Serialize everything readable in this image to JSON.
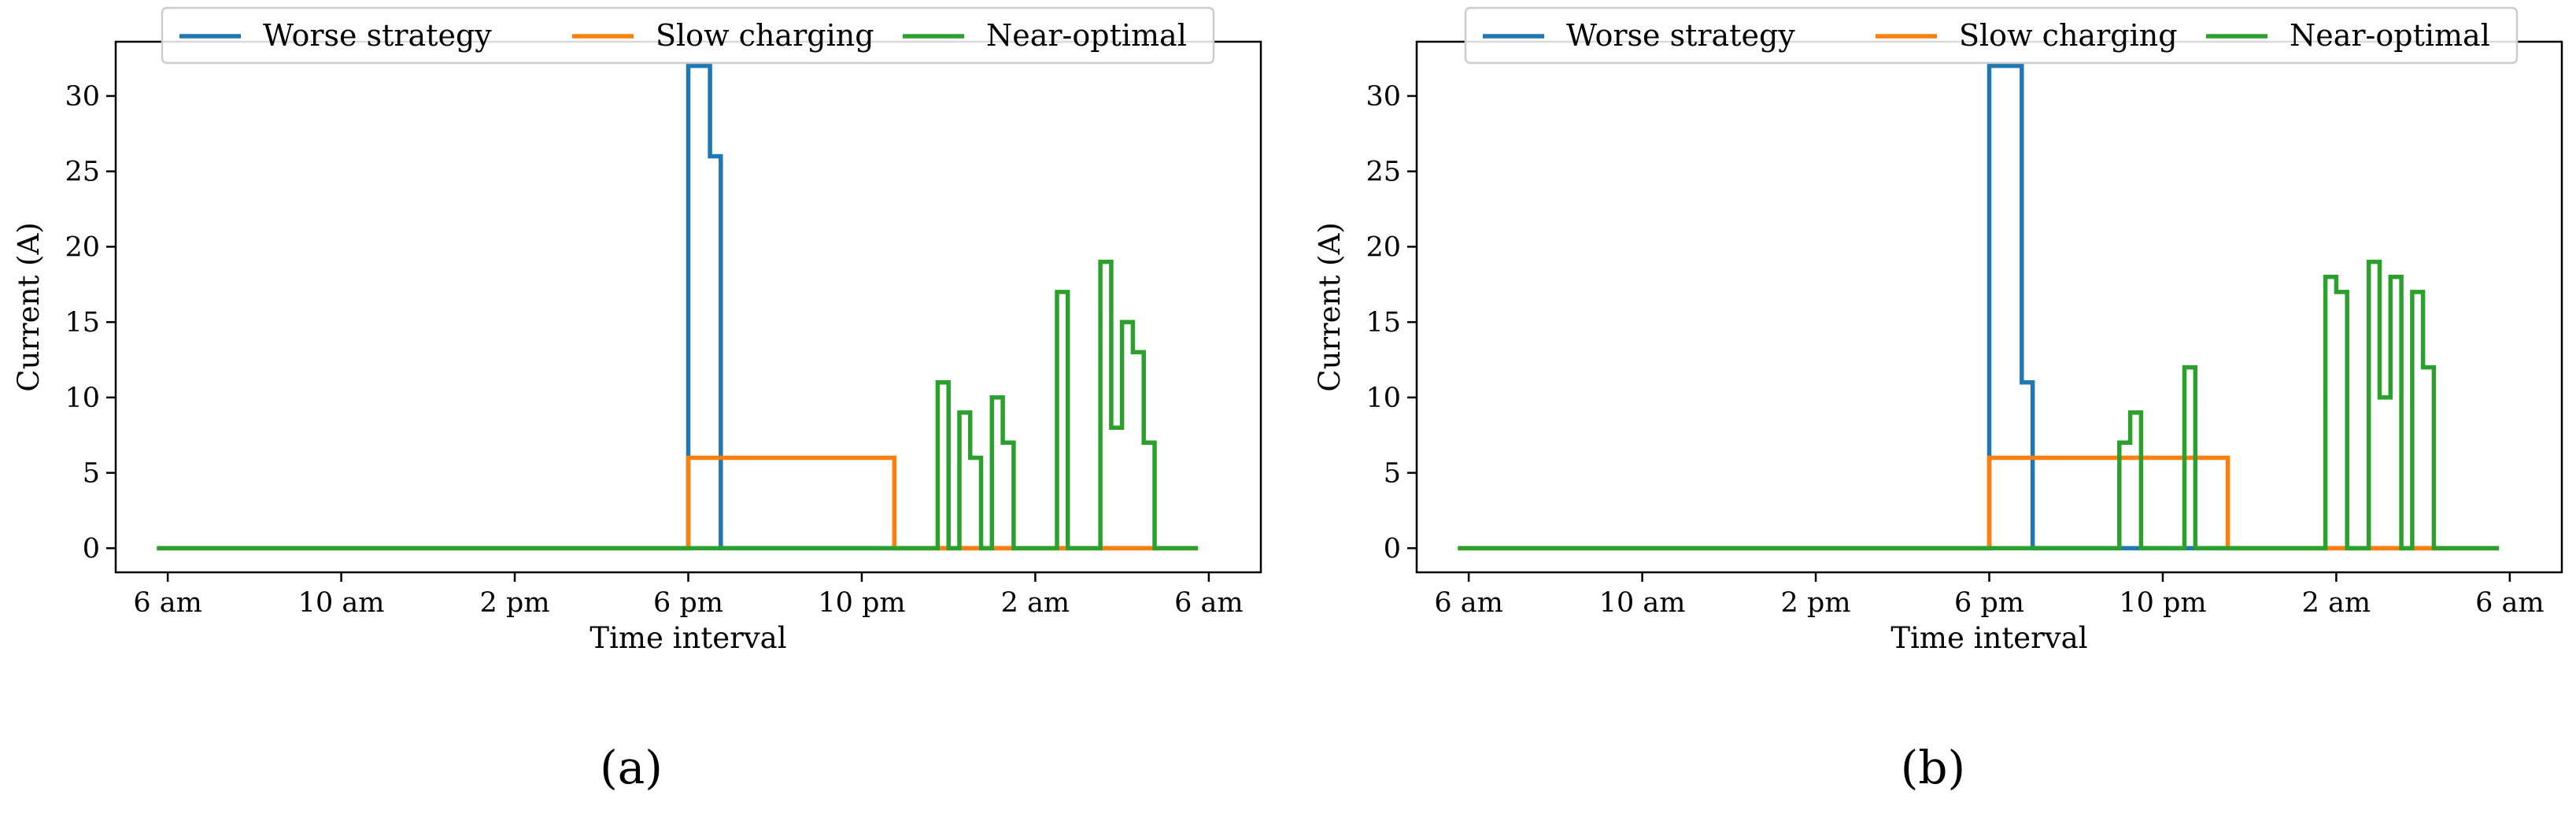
{
  "chart_data": [
    {
      "type": "line",
      "step": true,
      "panel_label": "(a)",
      "xlabel": "Time interval",
      "ylabel": "Current (A)",
      "x_ticks": [
        "6 am",
        "10 am",
        "2 pm",
        "6 pm",
        "10 pm",
        "2 am",
        "6 am"
      ],
      "x_tick_hours": [
        0,
        4,
        8,
        12,
        16,
        20,
        24
      ],
      "xlim": [
        -1.2,
        25.2
      ],
      "y_ticks": [
        0,
        5,
        10,
        15,
        20,
        25,
        30
      ],
      "ylim": [
        -1.6,
        33.6
      ],
      "legend": [
        "Worse strategy",
        "Slow charging",
        "Near-optimal"
      ],
      "series": [
        {
          "name": "Worse strategy",
          "color": "#1f77b4",
          "points": [
            [
              -0.25,
              0
            ],
            [
              12,
              0
            ],
            [
              12,
              32
            ],
            [
              12.5,
              32
            ],
            [
              12.5,
              26
            ],
            [
              12.75,
              26
            ],
            [
              12.75,
              0
            ],
            [
              23.75,
              0
            ]
          ]
        },
        {
          "name": "Slow charging",
          "color": "#ff7f0e",
          "points": [
            [
              -0.25,
              0
            ],
            [
              12,
              0
            ],
            [
              12,
              6
            ],
            [
              16.75,
              6
            ],
            [
              16.75,
              0
            ],
            [
              23.75,
              0
            ]
          ]
        },
        {
          "name": "Near-optimal",
          "color": "#2ca02c",
          "points": [
            [
              -0.25,
              0
            ],
            [
              17.75,
              0
            ],
            [
              17.75,
              11
            ],
            [
              18,
              11
            ],
            [
              18,
              0
            ],
            [
              18.25,
              0
            ],
            [
              18.25,
              9
            ],
            [
              18.5,
              9
            ],
            [
              18.5,
              6
            ],
            [
              18.75,
              6
            ],
            [
              18.75,
              0
            ],
            [
              19,
              0
            ],
            [
              19,
              10
            ],
            [
              19.25,
              10
            ],
            [
              19.25,
              7
            ],
            [
              19.5,
              7
            ],
            [
              19.5,
              0
            ],
            [
              20.5,
              0
            ],
            [
              20.5,
              17
            ],
            [
              20.75,
              17
            ],
            [
              20.75,
              0
            ],
            [
              21.5,
              0
            ],
            [
              21.5,
              19
            ],
            [
              21.75,
              19
            ],
            [
              21.75,
              8
            ],
            [
              22,
              8
            ],
            [
              22,
              15
            ],
            [
              22.25,
              15
            ],
            [
              22.25,
              13
            ],
            [
              22.5,
              13
            ],
            [
              22.5,
              7
            ],
            [
              22.75,
              7
            ],
            [
              22.75,
              0
            ],
            [
              23.75,
              0
            ]
          ]
        }
      ]
    },
    {
      "type": "line",
      "step": true,
      "panel_label": "(b)",
      "xlabel": "Time interval",
      "ylabel": "Current (A)",
      "x_ticks": [
        "6 am",
        "10 am",
        "2 pm",
        "6 pm",
        "10 pm",
        "2 am",
        "6 am"
      ],
      "x_tick_hours": [
        0,
        4,
        8,
        12,
        16,
        20,
        24
      ],
      "xlim": [
        -1.2,
        25.2
      ],
      "y_ticks": [
        0,
        5,
        10,
        15,
        20,
        25,
        30
      ],
      "ylim": [
        -1.6,
        33.6
      ],
      "legend": [
        "Worse strategy",
        "Slow charging",
        "Near-optimal"
      ],
      "series": [
        {
          "name": "Worse strategy",
          "color": "#1f77b4",
          "points": [
            [
              -0.25,
              0
            ],
            [
              12,
              0
            ],
            [
              12,
              32
            ],
            [
              12.75,
              32
            ],
            [
              12.75,
              11
            ],
            [
              13,
              11
            ],
            [
              13,
              0
            ],
            [
              23.75,
              0
            ]
          ]
        },
        {
          "name": "Slow charging",
          "color": "#ff7f0e",
          "points": [
            [
              -0.25,
              0
            ],
            [
              12,
              0
            ],
            [
              12,
              6
            ],
            [
              17.5,
              6
            ],
            [
              17.5,
              0
            ],
            [
              23.75,
              0
            ]
          ]
        },
        {
          "name": "Near-optimal",
          "color": "#2ca02c",
          "points": [
            [
              -0.25,
              0
            ],
            [
              15,
              0
            ],
            [
              15,
              7
            ],
            [
              15.25,
              7
            ],
            [
              15.25,
              9
            ],
            [
              15.5,
              9
            ],
            [
              15.5,
              0
            ],
            [
              16.5,
              0
            ],
            [
              16.5,
              12
            ],
            [
              16.75,
              12
            ],
            [
              16.75,
              0
            ],
            [
              19.75,
              0
            ],
            [
              19.75,
              18
            ],
            [
              20,
              18
            ],
            [
              20,
              17
            ],
            [
              20.25,
              17
            ],
            [
              20.25,
              0
            ],
            [
              20.75,
              0
            ],
            [
              20.75,
              19
            ],
            [
              21,
              19
            ],
            [
              21,
              10
            ],
            [
              21.25,
              10
            ],
            [
              21.25,
              18
            ],
            [
              21.5,
              18
            ],
            [
              21.5,
              0
            ],
            [
              21.75,
              0
            ],
            [
              21.75,
              17
            ],
            [
              22,
              17
            ],
            [
              22,
              12
            ],
            [
              22.25,
              12
            ],
            [
              22.25,
              0
            ],
            [
              23.75,
              0
            ]
          ]
        }
      ]
    }
  ]
}
